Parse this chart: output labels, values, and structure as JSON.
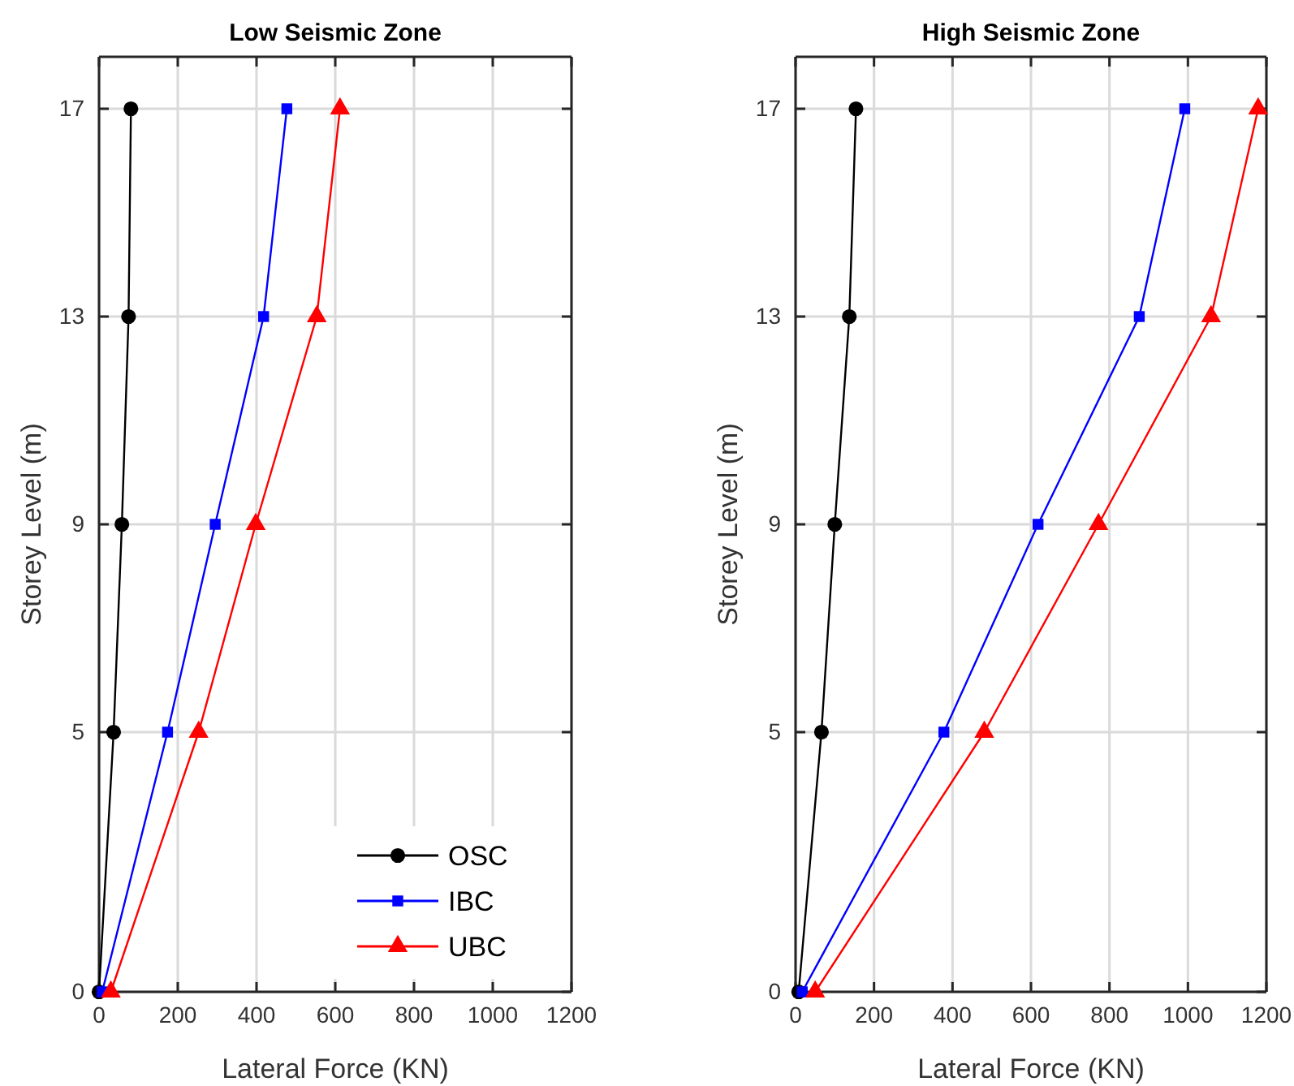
{
  "chart_data": [
    {
      "type": "line",
      "title": "Low Seismic Zone",
      "xlabel": "Lateral Force (KN)",
      "ylabel": "Storey Level (m)",
      "xlim": [
        0,
        1200
      ],
      "xticks": [
        0,
        200,
        400,
        600,
        800,
        1000,
        1200
      ],
      "ylim": [
        0,
        18
      ],
      "yticks": [
        0,
        5,
        9,
        13,
        17
      ],
      "grid": true,
      "legend": "bottom right",
      "series": [
        {
          "name": "OSC",
          "color": "#000000",
          "marker": "circle",
          "x": [
            0,
            37,
            58,
            75,
            81
          ],
          "values": [
            0,
            5,
            9,
            13,
            17
          ]
        },
        {
          "name": "IBC",
          "color": "#0000ff",
          "marker": "square",
          "x": [
            8,
            174,
            295,
            418,
            477
          ],
          "values": [
            0,
            5,
            9,
            13,
            17
          ]
        },
        {
          "name": "UBC",
          "color": "#ff0000",
          "marker": "triangle",
          "x": [
            30,
            253,
            398,
            553,
            612
          ],
          "values": [
            0,
            5,
            9,
            13,
            17
          ]
        }
      ]
    },
    {
      "type": "line",
      "title": "High Seismic Zone",
      "xlabel": "Lateral Force (KN)",
      "ylabel": "Storey Level (m)",
      "xlim": [
        0,
        1200
      ],
      "xticks": [
        0,
        200,
        400,
        600,
        800,
        1000,
        1200
      ],
      "ylim": [
        0,
        18
      ],
      "yticks": [
        0,
        5,
        9,
        13,
        17
      ],
      "grid": true,
      "series": [
        {
          "color": "#000000",
          "marker": "circle",
          "x": [
            8,
            66,
            100,
            137,
            154
          ],
          "values": [
            0,
            5,
            9,
            13,
            17
          ]
        },
        {
          "color": "#0000ff",
          "marker": "square",
          "x": [
            17,
            378,
            618,
            876,
            992
          ],
          "values": [
            0,
            5,
            9,
            13,
            17
          ]
        },
        {
          "color": "#ff0000",
          "marker": "triangle",
          "x": [
            50,
            481,
            772,
            1059,
            1179
          ],
          "values": [
            0,
            5,
            9,
            13,
            17
          ]
        }
      ]
    }
  ]
}
